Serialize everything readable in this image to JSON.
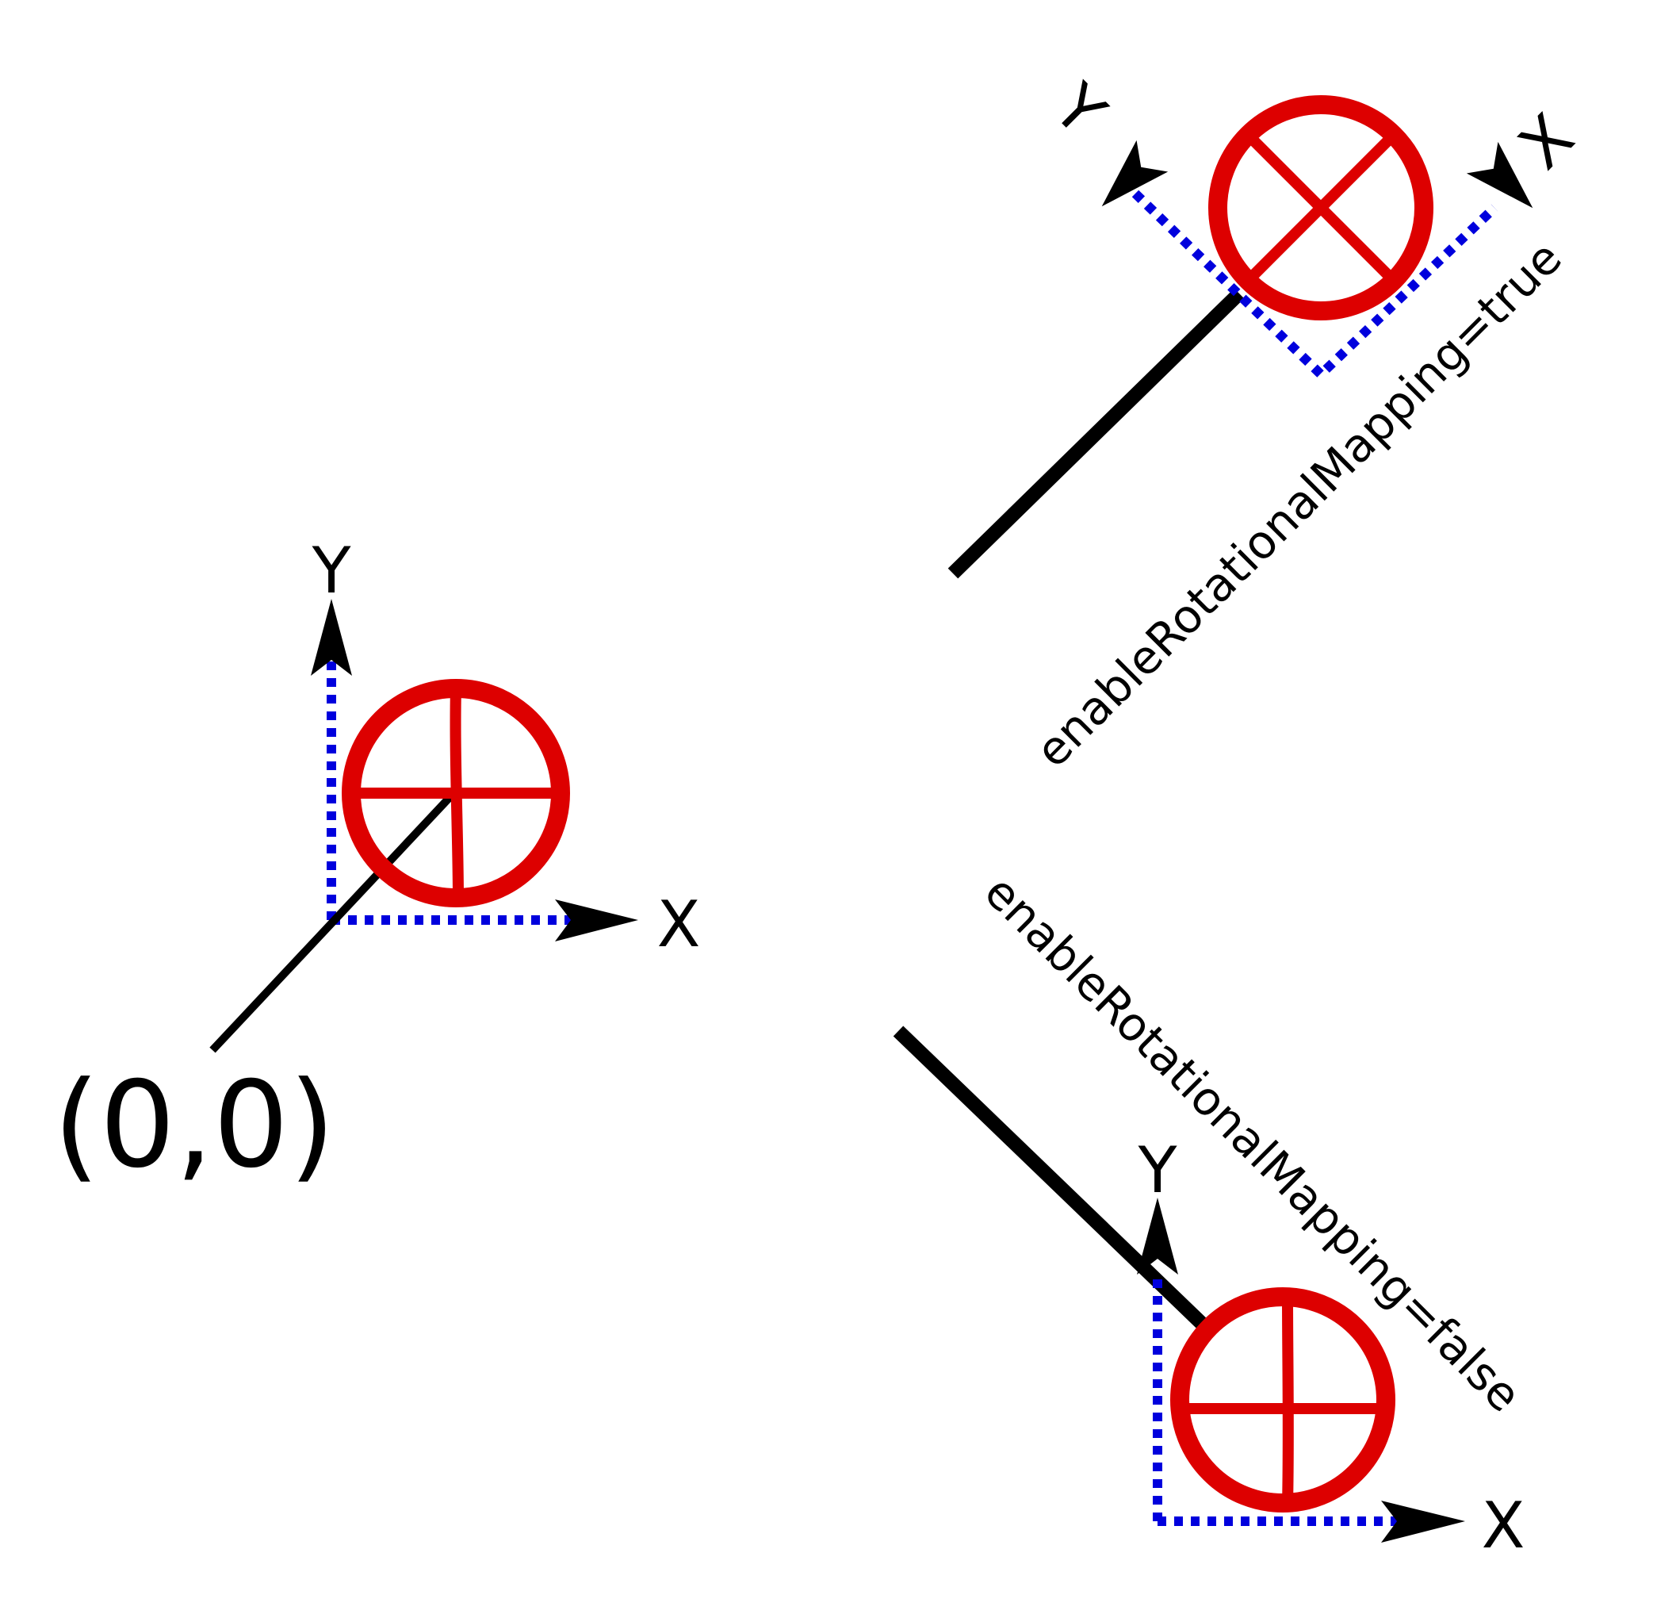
{
  "colors": {
    "marker": "#dd0000",
    "axis_dash": "#0000dd",
    "ink": "#000000",
    "background": "#ffffff"
  },
  "icons": {
    "marker": "circle-cross-marker-icon",
    "arrowhead": "arrowhead-icon"
  },
  "origin": {
    "label": "(0,0)",
    "x_axis_label": "X",
    "y_axis_label": "Y"
  },
  "rotated_case": {
    "caption": "enableRotationalMapping=true",
    "x_axis_label": "X",
    "y_axis_label": "Y",
    "rotation_deg": 45
  },
  "unrotated_case": {
    "caption": "enableRotationalMapping=false",
    "x_axis_label": "X",
    "y_axis_label": "Y",
    "rotation_deg": 0
  }
}
